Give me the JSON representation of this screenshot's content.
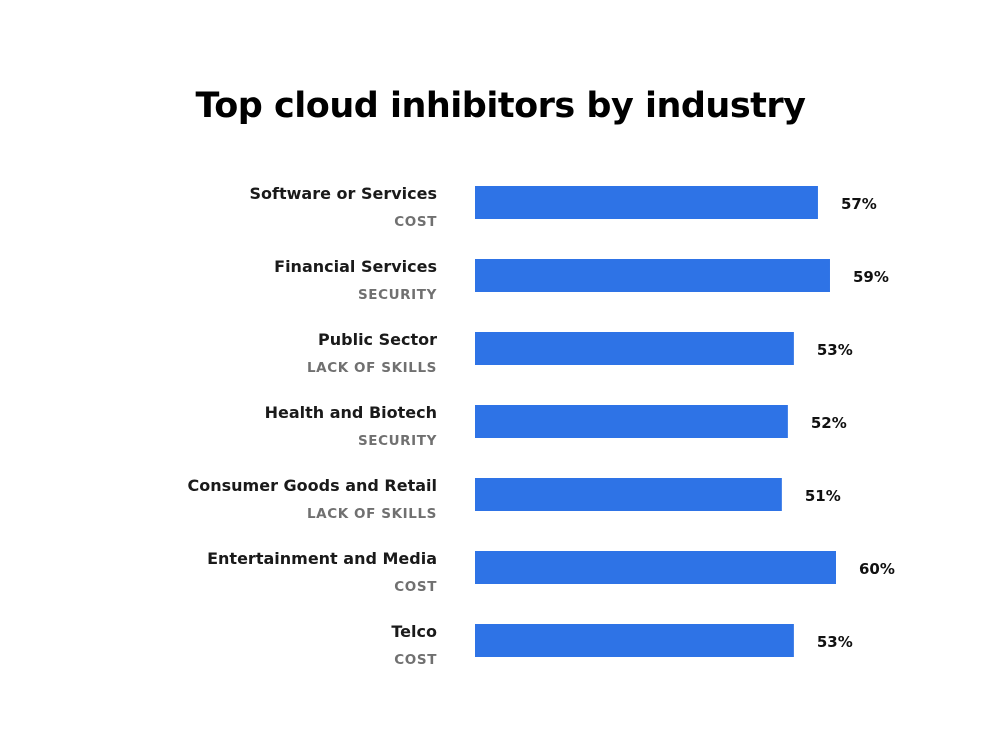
{
  "chart_data": {
    "type": "bar",
    "orientation": "horizontal",
    "title": "Top cloud inhibitors by industry",
    "categories": [
      "Software or Services",
      "Financial Services",
      "Public Sector",
      "Health and Biotech",
      "Consumer Goods and Retail",
      "Entertainment and Media",
      "Telco"
    ],
    "sublabels": [
      "COST",
      "SECURITY",
      "LACK OF SKILLS",
      "SECURITY",
      "LACK OF SKILLS",
      "COST",
      "COST"
    ],
    "values": [
      57,
      59,
      53,
      52,
      51,
      60,
      53
    ],
    "value_labels": [
      "57%",
      "59%",
      "53%",
      "52%",
      "51%",
      "60%",
      "53%"
    ],
    "unit": "%",
    "bar_color": "#2e73e6",
    "grid": false,
    "legend": "none"
  }
}
